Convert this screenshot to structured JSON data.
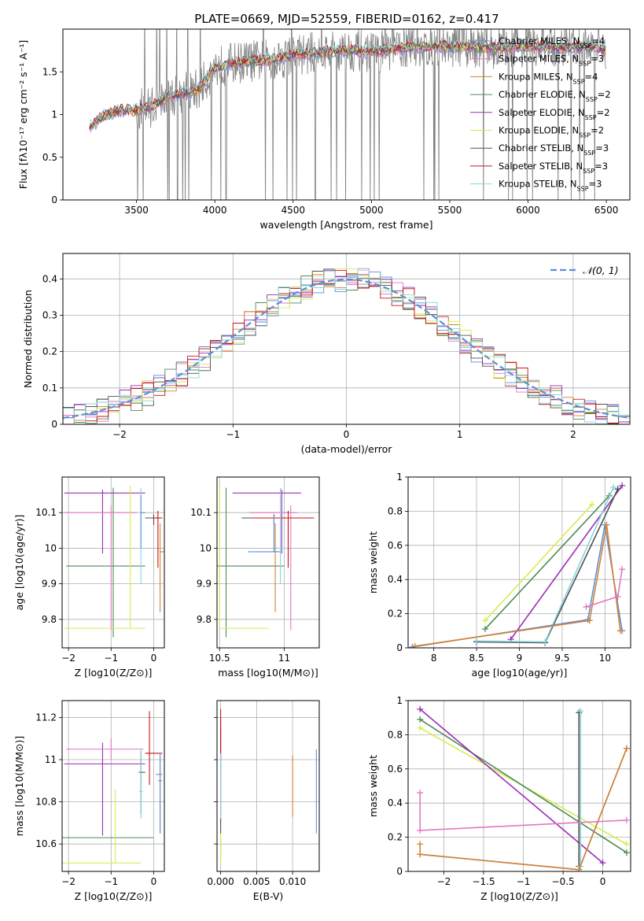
{
  "figure": {
    "title": "PLATE=0669, MJD=52559, FIBERID=0162, z=0.417"
  },
  "chart_data": [
    {
      "id": "spectrum",
      "type": "line",
      "title": "PLATE=0669, MJD=52559, FIBERID=0162, z=0.417",
      "xlabel": "wavelength [Angstrom, rest frame]",
      "ylabel": "Flux [fλ10⁻¹⁷ erg cm⁻² s⁻¹ A⁻¹]",
      "xlim": [
        3030,
        6650
      ],
      "ylim": [
        0,
        2.0
      ],
      "xticks": [
        3500,
        4000,
        4500,
        5000,
        5500,
        6000,
        6500
      ],
      "yticks": [
        0.0,
        0.5,
        1.0,
        1.5
      ],
      "data_color": "#808080",
      "continuum": {
        "x": [
          3200,
          3300,
          3400,
          3500,
          3600,
          3700,
          3800,
          3900,
          4000,
          4100,
          4200,
          4300,
          4400,
          4500,
          4600,
          4700,
          4800,
          4900,
          5000,
          5200,
          5400,
          5600,
          5800,
          6000,
          6200,
          6400,
          6500
        ],
        "y": [
          0.85,
          1.0,
          1.05,
          1.05,
          1.1,
          1.2,
          1.25,
          1.3,
          1.55,
          1.6,
          1.62,
          1.63,
          1.65,
          1.7,
          1.72,
          1.73,
          1.75,
          1.75,
          1.73,
          1.78,
          1.8,
          1.8,
          1.78,
          1.8,
          1.78,
          1.8,
          1.75
        ]
      },
      "legend_position": "upper right",
      "legend": [
        {
          "label": "Chabrier MILES, N",
          "sub": "SSP",
          "eq": "=4",
          "color": "#5b8fd9"
        },
        {
          "label": "Salpeter MILES, N",
          "sub": "SSP",
          "eq": "=3",
          "color": "#e377c2"
        },
        {
          "label": "Kroupa MILES, N",
          "sub": "SSP",
          "eq": "=4",
          "color": "#d6822f"
        },
        {
          "label": "Chabrier ELODIE, N",
          "sub": "SSP",
          "eq": "=2",
          "color": "#4f8a55"
        },
        {
          "label": "Salpeter ELODIE, N",
          "sub": "SSP",
          "eq": "=2",
          "color": "#9b2eb6"
        },
        {
          "label": "Kroupa ELODIE, N",
          "sub": "SSP",
          "eq": "=2",
          "color": "#d6ec50"
        },
        {
          "label": "Chabrier STELIB, N",
          "sub": "SSP",
          "eq": "=3",
          "color": "#505050"
        },
        {
          "label": "Salpeter STELIB, N",
          "sub": "SSP",
          "eq": "=3",
          "color": "#c81414"
        },
        {
          "label": "Kroupa STELIB, N",
          "sub": "SSP",
          "eq": "=3",
          "color": "#87d6dc"
        }
      ]
    },
    {
      "id": "residuals",
      "type": "histogram",
      "xlabel": "(data-model)/error",
      "ylabel": "Normed distribution",
      "xlim": [
        -2.5,
        2.5
      ],
      "ylim": [
        0,
        0.47
      ],
      "xticks": [
        -2,
        -1,
        0,
        1,
        2
      ],
      "yticks": [
        0.0,
        0.1,
        0.2,
        0.3,
        0.4
      ],
      "grid": true,
      "bin_width": 0.1,
      "legend_label": "N(0,1)",
      "legend_position": "upper right",
      "gaussian": {
        "mean": 0,
        "sigma": 1,
        "color": "#5b8fd9"
      },
      "series_colors": [
        "#5b8fd9",
        "#e377c2",
        "#d6822f",
        "#4f8a55",
        "#9b2eb6",
        "#d6ec50",
        "#505050",
        "#c81414",
        "#87d6dc"
      ]
    },
    {
      "id": "age_vs_Z",
      "type": "errorbar",
      "xlabel": "Z [log10(Z/Z⊙)]",
      "ylabel": "age  [log10(age/yr)]",
      "xlim": [
        -2.15,
        0.25
      ],
      "ylim": [
        9.72,
        10.2
      ],
      "xticks": [
        -2,
        -1,
        0
      ],
      "yticks": [
        9.8,
        9.9,
        10.0,
        10.1
      ],
      "grid": true,
      "points": [
        {
          "x": -0.95,
          "xerr": [
            1.1,
            0.75
          ],
          "y": 9.95,
          "yerr": [
            0.2,
            0.22
          ],
          "color": "#4f8a55"
        },
        {
          "x": -1.2,
          "xerr": [
            0.9,
            1.0
          ],
          "y": 10.155,
          "yerr": [
            0.17,
            0.01
          ],
          "color": "#9b2eb6"
        },
        {
          "x": -1.0,
          "xerr": [
            1.1,
            0.6
          ],
          "y": 10.1,
          "yerr": [
            0.33,
            0.02
          ],
          "color": "#e377c2"
        },
        {
          "x": -0.55,
          "xerr": [
            1.55,
            0.35
          ],
          "y": 9.775,
          "yerr": [
            0.0,
            0.4
          ],
          "color": "#d6ec50"
        },
        {
          "x": 0.0,
          "xerr": [
            0.2,
            0.15
          ],
          "y": 10.085,
          "yerr": [
            0.02,
            0.01
          ],
          "color": "#505050"
        },
        {
          "x": 0.1,
          "xerr": [
            0.1,
            0.1
          ],
          "y": 10.085,
          "yerr": [
            0.14,
            0.02
          ],
          "color": "#c81414"
        },
        {
          "x": -0.3,
          "xerr": [
            0.05,
            0.05
          ],
          "y": 10.0,
          "yerr": [
            0.1,
            0.17
          ],
          "color": "#87d6dc"
        },
        {
          "x": 0.15,
          "xerr": [
            0.0,
            0.1
          ],
          "y": 9.99,
          "yerr": [
            0.17,
            0.08
          ],
          "color": "#d6822f"
        },
        {
          "x": -0.3,
          "xerr": [
            0.0,
            0.1
          ],
          "y": 10.1,
          "yerr": [
            0.1,
            0.05
          ],
          "color": "#5b8fd9"
        }
      ]
    },
    {
      "id": "age_vs_mass",
      "type": "errorbar",
      "xlabel": "mass [log10(M/M⊙)]",
      "xlim": [
        10.48,
        11.27
      ],
      "ylim": [
        9.72,
        10.2
      ],
      "xticks": [
        10.5,
        11.0
      ],
      "yticks": [
        9.8,
        9.9,
        10.0,
        10.1
      ],
      "grid": true,
      "points": [
        {
          "x": 10.55,
          "xerr": [
            0.08,
            0.45
          ],
          "y": 9.95,
          "yerr": [
            0.2,
            0.22
          ],
          "color": "#4f8a55"
        },
        {
          "x": 10.98,
          "xerr": [
            0.38,
            0.15
          ],
          "y": 10.155,
          "yerr": [
            0.17,
            0.01
          ],
          "color": "#9b2eb6"
        },
        {
          "x": 11.05,
          "xerr": [
            0.32,
            0.05
          ],
          "y": 10.1,
          "yerr": [
            0.33,
            0.02
          ],
          "color": "#e377c2"
        },
        {
          "x": 10.5,
          "xerr": [
            0.0,
            0.38
          ],
          "y": 9.775,
          "yerr": [
            0.0,
            0.4
          ],
          "color": "#d6ec50"
        },
        {
          "x": 10.92,
          "xerr": [
            0.25,
            0.25
          ],
          "y": 10.085,
          "yerr": [
            0.02,
            0.01
          ],
          "color": "#505050"
        },
        {
          "x": 11.03,
          "xerr": [
            0.28,
            0.2
          ],
          "y": 10.085,
          "yerr": [
            0.14,
            0.02
          ],
          "color": "#c81414"
        },
        {
          "x": 10.97,
          "xerr": [
            0.05,
            0.05
          ],
          "y": 10.0,
          "yerr": [
            0.1,
            0.17
          ],
          "color": "#87d6dc"
        },
        {
          "x": 10.93,
          "xerr": [
            0.02,
            0.02
          ],
          "y": 9.99,
          "yerr": [
            0.17,
            0.08
          ],
          "color": "#d6822f"
        },
        {
          "x": 10.92,
          "xerr": [
            0.2,
            0.05
          ],
          "y": 9.99,
          "yerr": [
            0.0,
            0.1
          ],
          "color": "#5b8fd9"
        }
      ]
    },
    {
      "id": "weight_vs_age",
      "type": "line",
      "xlabel": "age  [log10(age/yr)]",
      "ylabel": "mass weight",
      "xlim": [
        7.7,
        10.3
      ],
      "ylim": [
        0,
        1.0
      ],
      "xticks": [
        8.0,
        8.5,
        9.0,
        9.5,
        10.0
      ],
      "yticks": [
        0.0,
        0.2,
        0.4,
        0.6,
        0.8,
        1.0
      ],
      "grid": true,
      "series": [
        {
          "color": "#d6ec50",
          "x": [
            8.6,
            9.85
          ],
          "y": [
            0.16,
            0.84
          ]
        },
        {
          "color": "#4f8a55",
          "x": [
            8.6,
            10.05
          ],
          "y": [
            0.11,
            0.89
          ]
        },
        {
          "color": "#9b2eb6",
          "x": [
            8.9,
            10.2
          ],
          "y": [
            0.05,
            0.95
          ]
        },
        {
          "color": "#505050",
          "x": [
            8.5,
            9.3,
            10.15
          ],
          "y": [
            0.035,
            0.03,
            0.93
          ]
        },
        {
          "color": "#87d6dc",
          "x": [
            8.5,
            9.3,
            10.1
          ],
          "y": [
            0.04,
            0.035,
            0.94
          ]
        },
        {
          "color": "#5b8fd9",
          "x": [
            7.75,
            9.8,
            10.0,
            10.2
          ],
          "y": [
            0.005,
            0.165,
            0.72,
            0.1
          ]
        },
        {
          "color": "#d6822f",
          "x": [
            7.78,
            9.82,
            10.02,
            10.18
          ],
          "y": [
            0.01,
            0.16,
            0.72,
            0.1
          ]
        },
        {
          "color": "#e377c2",
          "x": [
            9.78,
            10.15,
            10.2
          ],
          "y": [
            0.24,
            0.3,
            0.46
          ]
        }
      ]
    },
    {
      "id": "mass_vs_Z",
      "type": "errorbar",
      "xlabel": "Z [log10(Z/Z⊙)]",
      "ylabel": "mass [log10(M/M⊙)]",
      "xlim": [
        -2.15,
        0.25
      ],
      "ylim": [
        10.47,
        11.28
      ],
      "xticks": [
        -2,
        -1,
        0
      ],
      "yticks": [
        10.6,
        10.8,
        11.0,
        11.2
      ],
      "grid": true,
      "points": [
        {
          "x": -1.0,
          "xerr": [
            1.2,
            1.0
          ],
          "y": 10.63,
          "yerr": [
            0.0,
            0.0
          ],
          "color": "#4f8a55"
        },
        {
          "x": -1.2,
          "xerr": [
            0.9,
            1.0
          ],
          "y": 10.98,
          "yerr": [
            0.34,
            0.1
          ],
          "color": "#9b2eb6"
        },
        {
          "x": -1.0,
          "xerr": [
            1.05,
            0.75
          ],
          "y": 11.05,
          "yerr": [
            0.05,
            0.05
          ],
          "color": "#e377c2"
        },
        {
          "x": -0.9,
          "xerr": [
            1.3,
            0.6
          ],
          "y": 10.51,
          "yerr": [
            0.0,
            0.35
          ],
          "color": "#d6ec50"
        },
        {
          "x": -0.3,
          "xerr": [
            0.05,
            0.1
          ],
          "y": 10.94,
          "yerr": [
            0.2,
            0.1
          ],
          "color": "#505050"
        },
        {
          "x": -0.1,
          "xerr": [
            0.1,
            0.3
          ],
          "y": 11.03,
          "yerr": [
            0.15,
            0.2
          ],
          "color": "#c81414"
        },
        {
          "x": -0.3,
          "xerr": [
            0.05,
            0.05
          ],
          "y": 10.85,
          "yerr": [
            0.13,
            0.2
          ],
          "color": "#87d6dc"
        },
        {
          "x": 0.15,
          "xerr": [
            0.05,
            0.05
          ],
          "y": 10.9,
          "yerr": [
            0.25,
            0.1
          ],
          "color": "#d6822f"
        },
        {
          "x": 0.15,
          "xerr": [
            0.1,
            0.05
          ],
          "y": 10.93,
          "yerr": [
            0.28,
            0.1
          ],
          "color": "#5b8fd9"
        }
      ]
    },
    {
      "id": "mass_vs_ebv",
      "type": "errorbar",
      "xlabel": "E(B-V)",
      "xlim": [
        -0.0005,
        0.0137
      ],
      "ylim": [
        10.47,
        11.28
      ],
      "xticks": [
        0.0,
        0.005,
        0.01
      ],
      "xticklabels": [
        "0.000",
        "0.005",
        "0.010"
      ],
      "yticks": [
        10.6,
        10.8,
        11.0,
        11.2
      ],
      "grid": true,
      "points": [
        {
          "x": 0.0,
          "y": 10.63,
          "yerr": [
            0.1,
            0.0
          ],
          "color": "#4f8a55"
        },
        {
          "x": 0.0,
          "y": 11.0,
          "yerr": [
            0.3,
            0.2
          ],
          "color": "#9b2eb6"
        },
        {
          "x": 0.0,
          "y": 11.05,
          "yerr": [
            0.1,
            0.1
          ],
          "color": "#e377c2"
        },
        {
          "x": 0.0,
          "y": 10.72,
          "yerr": [
            0.22,
            0.2
          ],
          "color": "#d6ec50"
        },
        {
          "x": 0.0,
          "y": 10.95,
          "yerr": [
            0.3,
            0.2
          ],
          "color": "#505050"
        },
        {
          "x": 0.0,
          "y": 11.1,
          "yerr": [
            0.1,
            0.14
          ],
          "color": "#c81414"
        },
        {
          "x": 0.0,
          "y": 10.85,
          "yerr": [
            0.13,
            0.18
          ],
          "color": "#87d6dc"
        },
        {
          "x": 0.01,
          "y": 10.87,
          "yerr": [
            0.14,
            0.15
          ],
          "color": "#d6822f"
        },
        {
          "x": 0.0133,
          "y": 10.85,
          "yerr": [
            0.2,
            0.2
          ],
          "color": "#5b8fd9"
        }
      ]
    },
    {
      "id": "weight_vs_Z",
      "type": "line",
      "xlabel": "Z [log10(Z/Z⊙)]",
      "ylabel": "mass weight",
      "xlim": [
        -2.45,
        0.35
      ],
      "ylim": [
        0,
        1.0
      ],
      "xticks": [
        -2.0,
        -1.5,
        -1.0,
        -0.5,
        0.0
      ],
      "yticks": [
        0.0,
        0.2,
        0.4,
        0.6,
        0.8,
        1.0
      ],
      "grid": true,
      "series": [
        {
          "color": "#d6ec50",
          "x": [
            -2.3,
            0.3
          ],
          "y": [
            0.84,
            0.16
          ]
        },
        {
          "color": "#4f8a55",
          "x": [
            -2.3,
            0.3
          ],
          "y": [
            0.89,
            0.11
          ]
        },
        {
          "color": "#9b2eb6",
          "x": [
            -2.3,
            0.0
          ],
          "y": [
            0.95,
            0.05
          ]
        },
        {
          "color": "#505050",
          "x": [
            -0.3,
            -0.3
          ],
          "y": [
            0.93,
            0.03
          ]
        },
        {
          "color": "#87d6dc",
          "x": [
            -0.28,
            -0.28
          ],
          "y": [
            0.94,
            0.03
          ]
        },
        {
          "color": "#5b8fd9",
          "x": [
            -2.3,
            -0.3,
            0.3
          ],
          "y": [
            0.1,
            0.01,
            0.72
          ]
        },
        {
          "color": "#d6822f",
          "x": [
            -2.3,
            -2.3,
            -0.3,
            0.3
          ],
          "y": [
            0.16,
            0.1,
            0.01,
            0.72
          ]
        },
        {
          "color": "#e377c2",
          "x": [
            -2.3,
            -2.3,
            0.3
          ],
          "y": [
            0.46,
            0.24,
            0.3
          ]
        }
      ]
    }
  ]
}
